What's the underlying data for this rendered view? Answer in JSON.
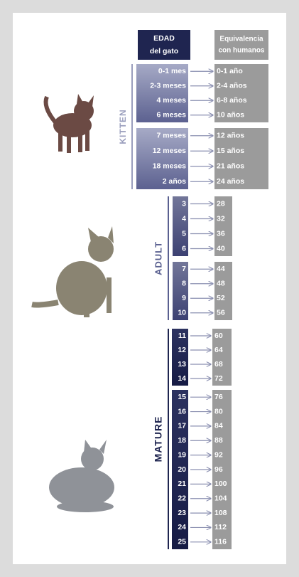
{
  "header": {
    "cat_age": {
      "line1": "EDAD",
      "line2": "del gato"
    },
    "human_age": {
      "line1": "Equivalencia",
      "line2": "con humanos"
    }
  },
  "groups": [
    {
      "label": "KITTEN",
      "blocks": [
        {
          "rows": [
            {
              "cat": "0-1 mes",
              "human": "0-1 año"
            },
            {
              "cat": "2-3 meses",
              "human": "2-4 años"
            },
            {
              "cat": "4 meses",
              "human": "6-8 años"
            },
            {
              "cat": "6 meses",
              "human": "10 años"
            }
          ]
        },
        {
          "rows": [
            {
              "cat": "7 meses",
              "human": "12 años"
            },
            {
              "cat": "12 meses",
              "human": "15 años"
            },
            {
              "cat": "18 meses",
              "human": "21 años"
            },
            {
              "cat": "2 años",
              "human": "24 años"
            }
          ]
        }
      ]
    },
    {
      "label": "ADULT",
      "blocks": [
        {
          "rows": [
            {
              "cat": 3,
              "human": 28
            },
            {
              "cat": 4,
              "human": 32
            },
            {
              "cat": 5,
              "human": 36
            },
            {
              "cat": 6,
              "human": 40
            }
          ]
        },
        {
          "rows": [
            {
              "cat": 7,
              "human": 44
            },
            {
              "cat": 8,
              "human": 48
            },
            {
              "cat": 9,
              "human": 52
            },
            {
              "cat": 10,
              "human": 56
            }
          ]
        }
      ]
    },
    {
      "label": "MATURE",
      "blocks": [
        {
          "rows": [
            {
              "cat": 11,
              "human": 60
            },
            {
              "cat": 12,
              "human": 64
            },
            {
              "cat": 13,
              "human": 68
            },
            {
              "cat": 14,
              "human": 72
            }
          ]
        },
        {
          "rows": [
            {
              "cat": 15,
              "human": 76
            },
            {
              "cat": 16,
              "human": 80
            },
            {
              "cat": 17,
              "human": 84
            },
            {
              "cat": 18,
              "human": 88
            },
            {
              "cat": 19,
              "human": 92
            },
            {
              "cat": 20,
              "human": 96
            },
            {
              "cat": 21,
              "human": 100
            },
            {
              "cat": 22,
              "human": 104
            },
            {
              "cat": 23,
              "human": 108
            },
            {
              "cat": 24,
              "human": 112
            },
            {
              "cat": 25,
              "human": 116
            }
          ]
        }
      ]
    }
  ]
}
